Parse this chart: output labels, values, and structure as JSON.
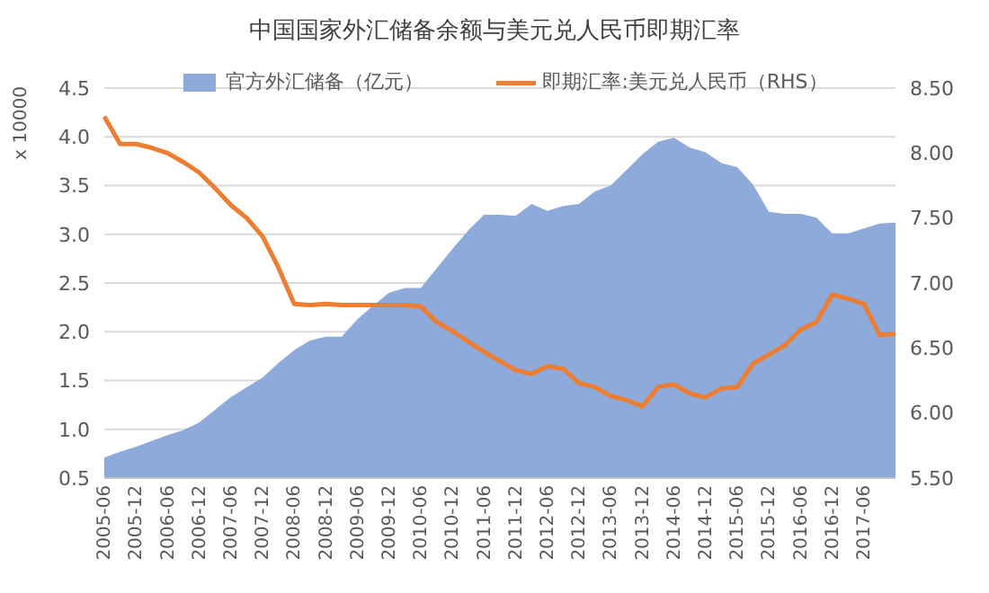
{
  "chart_data": {
    "type": "area",
    "title": "中国国家外汇储备余额与美元兑人民币即期汇率",
    "ylabel": "x 10000",
    "categories": [
      "2005-06",
      null,
      "2005-12",
      null,
      "2006-06",
      null,
      "2006-12",
      null,
      "2007-06",
      null,
      "2007-12",
      null,
      "2008-06",
      null,
      "2008-12",
      null,
      "2009-06",
      null,
      "2009-12",
      null,
      "2010-06",
      null,
      "2010-12",
      null,
      "2011-06",
      null,
      "2011-12",
      null,
      "2012-06",
      null,
      "2012-12",
      null,
      "2013-06",
      null,
      "2013-12",
      null,
      "2014-06",
      null,
      "2014-12",
      null,
      "2015-06",
      null,
      "2015-12",
      null,
      "2016-06",
      null,
      "2016-12",
      null,
      "2017-06",
      null,
      null
    ],
    "series": [
      {
        "name": "官方外汇储备（亿元）",
        "color": "#8eaadb",
        "values": [
          0.71,
          0.77,
          0.82,
          0.88,
          0.94,
          0.99,
          1.07,
          1.2,
          1.33,
          1.43,
          1.53,
          1.68,
          1.81,
          1.91,
          1.95,
          1.95,
          2.13,
          2.27,
          2.4,
          2.45,
          2.45,
          2.65,
          2.85,
          3.04,
          3.2,
          3.2,
          3.19,
          3.31,
          3.24,
          3.29,
          3.31,
          3.44,
          3.5,
          3.66,
          3.82,
          3.95,
          3.99,
          3.89,
          3.84,
          3.73,
          3.69,
          3.51,
          3.23,
          3.21,
          3.21,
          3.17,
          3.01,
          3.01,
          3.06,
          3.11,
          3.12
        ]
      },
      {
        "name": "即期汇率:美元兑人民币（RHS）",
        "type": "line",
        "axis": "y2",
        "color": "#ed7d31",
        "values": [
          8.28,
          8.07,
          8.07,
          8.04,
          8.0,
          7.93,
          7.85,
          7.73,
          7.6,
          7.5,
          7.36,
          7.12,
          6.84,
          6.83,
          6.84,
          6.83,
          6.83,
          6.83,
          6.83,
          6.83,
          6.82,
          6.7,
          6.63,
          6.55,
          6.47,
          6.4,
          6.33,
          6.3,
          6.36,
          6.34,
          6.23,
          6.2,
          6.13,
          6.1,
          6.05,
          6.2,
          6.22,
          6.15,
          6.12,
          6.19,
          6.2,
          6.38,
          6.45,
          6.52,
          6.64,
          6.7,
          6.91,
          6.88,
          6.84,
          6.6,
          6.61
        ]
      }
    ],
    "ylim": [
      0.5,
      4.5
    ],
    "yticks": [
      0.5,
      {
        "value": 1,
        "label": "1.0"
      },
      1.5,
      {
        "value": 2,
        "label": "2.0"
      },
      2.5,
      {
        "value": 3,
        "label": "3.0"
      },
      3.5,
      {
        "value": 4,
        "label": "4.0"
      },
      4.5
    ],
    "y2lim": [
      5.5,
      8.5
    ],
    "y2ticks": [
      {
        "value": 5.5,
        "label": "5.50"
      },
      {
        "value": 6,
        "label": "6.00"
      },
      {
        "value": 6.5,
        "label": "6.50"
      },
      {
        "value": 7,
        "label": "7.00"
      },
      {
        "value": 7.5,
        "label": "7.50"
      },
      {
        "value": 8,
        "label": "8.00"
      },
      {
        "value": 8.5,
        "label": "8.50"
      }
    ],
    "grid": "y",
    "legend": "top",
    "marker": "none",
    "line_style": "solid"
  }
}
